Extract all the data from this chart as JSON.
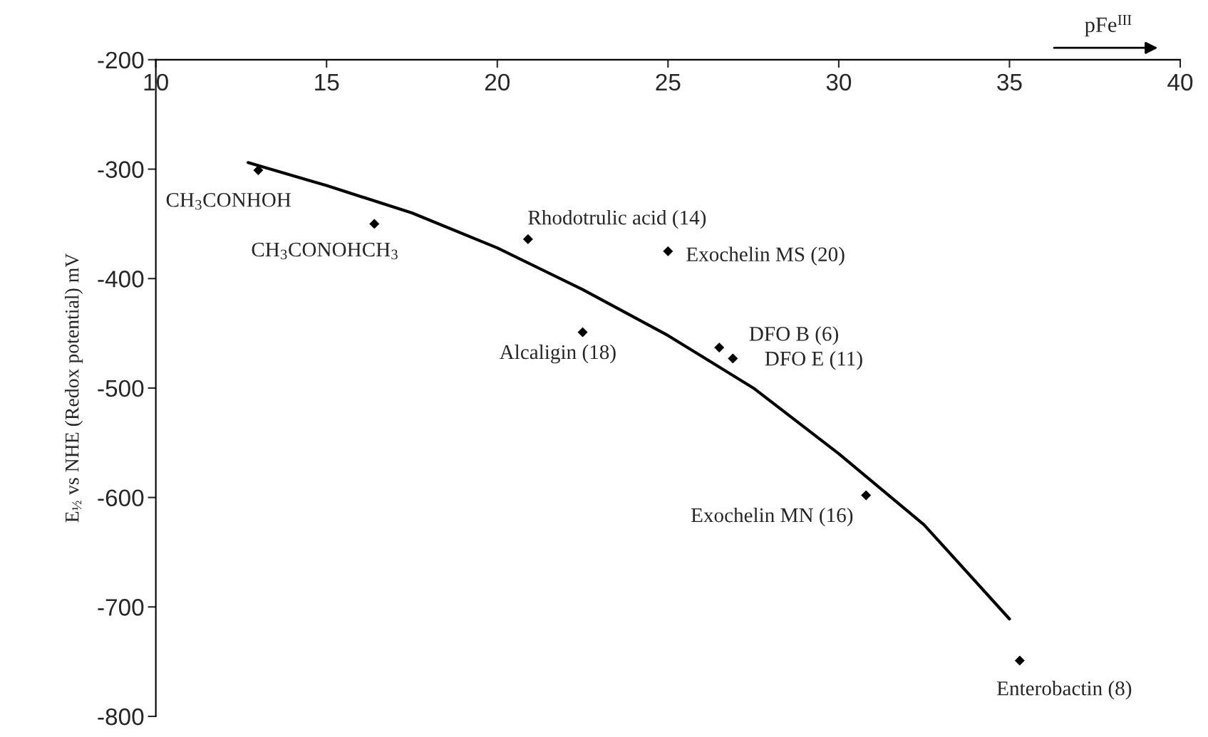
{
  "chart_data": {
    "type": "scatter",
    "xlabel": "pFe$^{III}$",
    "ylabel": "E$_{½}$ vs NHE (Redox potential) mV",
    "xlim": [
      10,
      40
    ],
    "ylim": [
      -800,
      -200
    ],
    "xticks": [
      10,
      15,
      20,
      25,
      30,
      35,
      40
    ],
    "yticks": [
      -200,
      -300,
      -400,
      -500,
      -600,
      -700,
      -800
    ],
    "grid": false,
    "legend": false,
    "marker": "diamond",
    "series": [
      {
        "color": "#000000",
        "x": [
          13.0,
          16.4,
          20.9,
          25.0,
          22.5,
          26.5,
          26.9,
          30.8,
          35.3
        ],
        "values": [
          -301,
          -350,
          -364,
          -375,
          -449,
          -463,
          -473,
          -598,
          -749
        ]
      },
      {
        "type": "line",
        "color": "#000000",
        "marker": "none",
        "x": [
          12.7,
          15,
          17.5,
          20,
          22.5,
          25,
          27.5,
          30,
          32.5,
          35
        ],
        "values": [
          -294,
          -315,
          -340,
          -372,
          -410,
          -452,
          -500,
          -560,
          -625,
          -711
        ]
      }
    ],
    "annotations": [
      {
        "text": "CH$_{3}$CONHOH",
        "x": 13.0,
        "y": -301
      },
      {
        "text": "CH$_{3}$CONOHCH$_{3}$",
        "x": 16.4,
        "y": -350
      },
      {
        "text": "Rhodotrulic acid (14)",
        "x": 20.9,
        "y": -364
      },
      {
        "text": "Exochelin MS (20)",
        "x": 25.0,
        "y": -375
      },
      {
        "text": "Alcaligin (18)",
        "x": 22.5,
        "y": -449
      },
      {
        "text": "DFO B (6)",
        "x": 26.5,
        "y": -463
      },
      {
        "text": "DFO E (11)",
        "x": 26.9,
        "y": -473
      },
      {
        "text": "Exochelin MN (16)",
        "x": 30.8,
        "y": -598
      },
      {
        "text": "Enterobactin (8)",
        "x": 35.3,
        "y": -749
      }
    ]
  }
}
